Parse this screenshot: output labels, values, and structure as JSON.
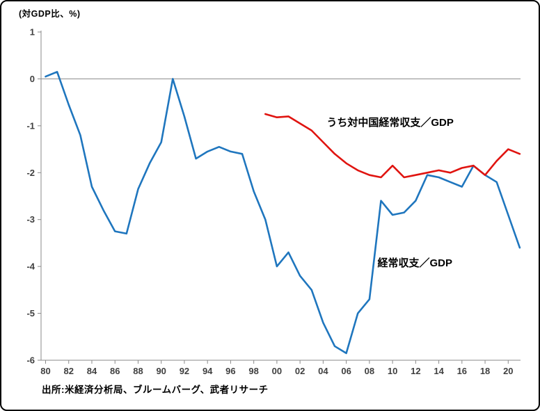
{
  "chart_data": {
    "type": "line",
    "title": "(対GDP比、%)",
    "ylabel": "対GDP比、%",
    "xlabel": "",
    "xlim": [
      1980,
      2021
    ],
    "ylim": [
      -6,
      1
    ],
    "grid": "zero-line-only",
    "legend_position": "inline-annotations",
    "axis_color": "#8a8a8a",
    "x_ticks": {
      "years": [
        1980,
        1982,
        1984,
        1986,
        1988,
        1990,
        1992,
        1994,
        1996,
        1998,
        2000,
        2002,
        2004,
        2006,
        2008,
        2010,
        2012,
        2014,
        2016,
        2018,
        2020
      ],
      "labels": [
        "80",
        "82",
        "84",
        "86",
        "88",
        "90",
        "92",
        "94",
        "96",
        "98",
        "00",
        "02",
        "04",
        "06",
        "08",
        "10",
        "12",
        "14",
        "16",
        "18",
        "20"
      ]
    },
    "y_ticks": {
      "values": [
        1,
        0,
        -1,
        -2,
        -3,
        -4,
        -5,
        -6
      ],
      "labels": [
        "1",
        "0",
        "-1",
        "-2",
        "-3",
        "-4",
        "-5",
        "-6"
      ]
    },
    "series": [
      {
        "name": "経常収支／GDP",
        "color": "#1F76BE",
        "start_year": 1980,
        "values": [
          0.05,
          0.15,
          -0.55,
          -1.2,
          -2.3,
          -2.8,
          -3.25,
          -3.3,
          -2.35,
          -1.8,
          -1.35,
          0.0,
          -0.8,
          -1.7,
          -1.55,
          -1.45,
          -1.55,
          -1.6,
          -2.4,
          -3.0,
          -4.0,
          -3.7,
          -4.2,
          -4.5,
          -5.2,
          -5.7,
          -5.85,
          -5.0,
          -4.7,
          -2.6,
          -2.9,
          -2.85,
          -2.6,
          -2.05,
          -2.1,
          -2.2,
          -2.3,
          -1.85,
          -2.05,
          -2.2,
          -2.9,
          -3.6
        ]
      },
      {
        "name": "うち対中国経常収支／GDP",
        "color": "#E01410",
        "start_year": 1999,
        "values": [
          -0.75,
          -0.82,
          -0.8,
          -0.95,
          -1.1,
          -1.35,
          -1.6,
          -1.8,
          -1.95,
          -2.05,
          -2.1,
          -1.85,
          -2.1,
          -2.05,
          -2.0,
          -1.95,
          -2.0,
          -1.9,
          -1.85,
          -2.05,
          -1.75,
          -1.5,
          -1.6
        ]
      }
    ],
    "annotations": [
      {
        "text": "うち対中国経常収支／GDP",
        "year": 2004.3,
        "value": -1.0
      },
      {
        "text": "経常収支／GDP",
        "year": 2008.7,
        "value": -4.0
      }
    ],
    "source": "出所:米経済分析局、ブルームバーグ、武者リサーチ"
  }
}
